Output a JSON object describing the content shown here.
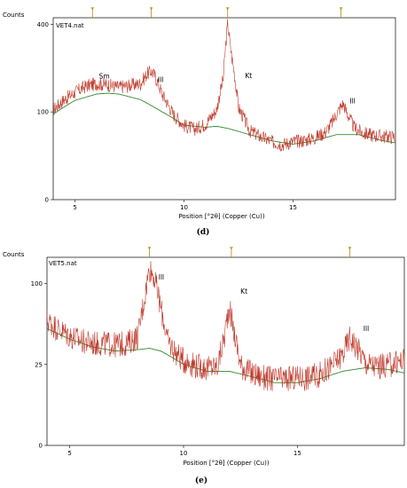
{
  "chart_data": [
    {
      "panel_label": "(d)",
      "type": "line",
      "sample_name": "VET4.nat",
      "ylabel": "Counts",
      "xlabel": "Position [°2θ] (Copper (Cu))",
      "xlim": [
        4,
        19.7
      ],
      "ylim": [
        0,
        430
      ],
      "x_ticks": [
        5,
        10,
        15
      ],
      "y_ticks": [
        0,
        100,
        400
      ],
      "y_scale": "sqrt",
      "grid": false,
      "colors": {
        "pattern": "#c0392b",
        "background": "#2e8b2e",
        "frame": "#000000",
        "marker": "#b8860b"
      },
      "annotations": [
        {
          "text": "Sm",
          "x": 6.1,
          "y": 190
        },
        {
          "text": "Ill",
          "x": 8.8,
          "y": 180
        },
        {
          "text": "Kt",
          "x": 12.8,
          "y": 192
        },
        {
          "text": "Ill",
          "x": 17.6,
          "y": 120
        }
      ],
      "reference_markers": [
        5.8,
        8.5,
        12.0,
        17.2
      ],
      "series": [
        {
          "role": "pattern",
          "x": [
            4.0,
            4.5,
            5.0,
            5.5,
            6.0,
            6.5,
            7.0,
            7.5,
            8.0,
            8.3,
            8.5,
            8.7,
            9.0,
            9.5,
            10.0,
            10.5,
            11.0,
            11.5,
            11.8,
            12.0,
            12.2,
            12.5,
            13.0,
            13.5,
            14.0,
            14.5,
            15.0,
            15.5,
            16.0,
            16.5,
            16.8,
            17.1,
            17.3,
            17.5,
            17.8,
            18.2,
            18.7,
            19.2,
            19.7
          ],
          "y": [
            105,
            130,
            150,
            168,
            175,
            172,
            165,
            170,
            175,
            205,
            215,
            195,
            145,
            95,
            72,
            65,
            75,
            105,
            190,
            400,
            260,
            110,
            62,
            52,
            44,
            40,
            44,
            46,
            50,
            60,
            78,
            105,
            120,
            95,
            68,
            58,
            54,
            52,
            52
          ]
        },
        {
          "role": "background",
          "x": [
            4.0,
            5.0,
            6.0,
            6.5,
            7.0,
            8.0,
            9.0,
            10.0,
            11.0,
            11.5,
            12.0,
            13.0,
            14.0,
            15.0,
            16.0,
            17.0,
            18.0,
            19.0,
            19.7
          ],
          "y": [
            95,
            128,
            145,
            147,
            145,
            130,
            100,
            72,
            68,
            70,
            66,
            55,
            45,
            40,
            45,
            55,
            55,
            46,
            42
          ]
        }
      ]
    },
    {
      "panel_label": "(e)",
      "type": "line",
      "sample_name": "VET5.nat",
      "ylabel": "Counts",
      "xlabel": "Position [°2θ] (Copper (Cu))",
      "xlim": [
        4,
        19.7
      ],
      "ylim": [
        0,
        135
      ],
      "x_ticks": [
        5,
        10,
        15
      ],
      "y_ticks": [
        0,
        25,
        100
      ],
      "y_scale": "sqrt",
      "grid": false,
      "colors": {
        "pattern": "#c0392b",
        "background": "#2e8b2e",
        "frame": "#000000",
        "marker": "#b8860b"
      },
      "annotations": [
        {
          "text": "Ill",
          "x": 8.9,
          "y": 105
        },
        {
          "text": "Kt",
          "x": 12.5,
          "y": 88
        },
        {
          "text": "Ill",
          "x": 17.9,
          "y": 50
        }
      ],
      "reference_markers": [
        8.5,
        12.1,
        17.3
      ],
      "series": [
        {
          "role": "pattern",
          "x": [
            4.0,
            4.5,
            5.0,
            5.5,
            6.0,
            6.5,
            7.0,
            7.5,
            8.0,
            8.3,
            8.5,
            8.7,
            9.0,
            9.3,
            9.7,
            10.0,
            10.5,
            11.0,
            11.5,
            11.8,
            12.0,
            12.2,
            12.5,
            13.0,
            13.5,
            14.0,
            14.5,
            15.0,
            15.5,
            16.0,
            16.5,
            17.0,
            17.3,
            17.6,
            18.0,
            18.5,
            19.0,
            19.7
          ],
          "y": [
            60,
            52,
            46,
            42,
            40,
            40,
            39,
            40,
            46,
            85,
            120,
            110,
            72,
            42,
            32,
            28,
            25,
            23,
            24,
            45,
            75,
            50,
            25,
            20,
            18,
            17,
            17,
            18,
            18,
            20,
            24,
            32,
            45,
            38,
            26,
            24,
            25,
            28
          ]
        },
        {
          "role": "background",
          "x": [
            4.0,
            5.0,
            6.0,
            7.0,
            8.0,
            8.5,
            9.0,
            10.0,
            11.0,
            12.0,
            13.0,
            14.0,
            15.0,
            16.0,
            17.0,
            18.0,
            19.0,
            19.7
          ],
          "y": [
            52,
            43,
            37,
            34,
            35,
            36,
            34,
            25,
            21,
            21,
            18,
            15,
            15,
            17,
            21,
            23,
            22,
            20
          ]
        }
      ]
    }
  ]
}
